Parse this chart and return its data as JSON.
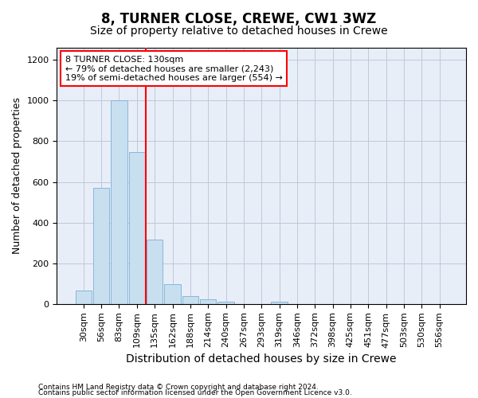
{
  "title": "8, TURNER CLOSE, CREWE, CW1 3WZ",
  "subtitle": "Size of property relative to detached houses in Crewe",
  "xlabel": "Distribution of detached houses by size in Crewe",
  "ylabel": "Number of detached properties",
  "categories": [
    "30sqm",
    "56sqm",
    "83sqm",
    "109sqm",
    "135sqm",
    "162sqm",
    "188sqm",
    "214sqm",
    "240sqm",
    "267sqm",
    "293sqm",
    "319sqm",
    "346sqm",
    "372sqm",
    "398sqm",
    "425sqm",
    "451sqm",
    "477sqm",
    "503sqm",
    "530sqm",
    "556sqm"
  ],
  "values": [
    65,
    570,
    1000,
    745,
    315,
    95,
    38,
    22,
    12,
    0,
    0,
    12,
    0,
    0,
    0,
    0,
    0,
    0,
    0,
    0,
    0
  ],
  "bar_color": "#c8dff0",
  "bar_edge_color": "#7aafd4",
  "vline_color": "red",
  "annotation_text": "8 TURNER CLOSE: 130sqm\n← 79% of detached houses are smaller (2,243)\n19% of semi-detached houses are larger (554) →",
  "annotation_box_color": "white",
  "annotation_box_edge_color": "red",
  "ylim": [
    0,
    1260
  ],
  "yticks": [
    0,
    200,
    400,
    600,
    800,
    1000,
    1200
  ],
  "footer_line1": "Contains HM Land Registry data © Crown copyright and database right 2024.",
  "footer_line2": "Contains public sector information licensed under the Open Government Licence v3.0.",
  "bg_color": "#e8eef8",
  "grid_color": "#c0c8d8",
  "title_fontsize": 12,
  "subtitle_fontsize": 10,
  "xlabel_fontsize": 10,
  "ylabel_fontsize": 9,
  "tick_fontsize": 8,
  "annotation_fontsize": 8,
  "footer_fontsize": 6.5
}
